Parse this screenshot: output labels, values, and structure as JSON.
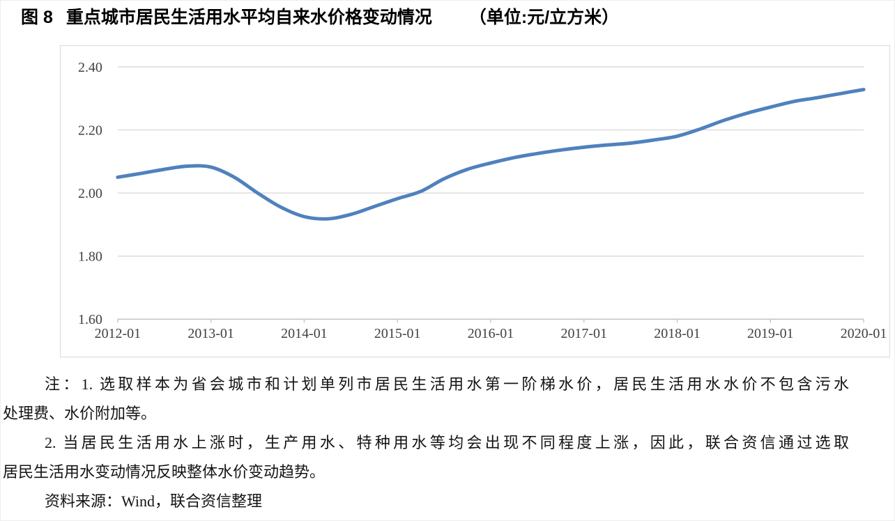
{
  "page": {
    "title": {
      "figure_label": "图 8",
      "main": "重点城市居民生活用水平均自来水价格变动情况",
      "unit": "（单位:元/立方米）"
    },
    "notes": {
      "note1_line1": "注：1. 选取样本为省会城市和计划单列市居民生活用水第一阶梯水价，居民生活用水水价不包含污水",
      "note1_line2": "处理费、水价附加等。",
      "note2_line1": "2. 当居民生活用水上涨时，生产用水、特种用水等均会出现不同程度上涨，因此，联合资信通过选取",
      "note2_line2": "居民生活用水变动情况反映整体水价变动趋势。",
      "source": "资料来源：Wind，联合资信整理"
    }
  },
  "chart_data": {
    "type": "line",
    "title": "图 8 重点城市居民生活用水平均自来水价格变动情况（单位:元/立方米）",
    "xlabel": "",
    "ylabel": "",
    "ylim": [
      1.6,
      2.4
    ],
    "grid": "horizontal",
    "legend_position": "none",
    "x": [
      "2012-01",
      "2012-04",
      "2012-07",
      "2012-10",
      "2013-01",
      "2013-04",
      "2013-07",
      "2013-10",
      "2014-01",
      "2014-04",
      "2014-07",
      "2014-10",
      "2015-01",
      "2015-04",
      "2015-07",
      "2015-10",
      "2016-01",
      "2016-04",
      "2016-07",
      "2016-10",
      "2017-01",
      "2017-04",
      "2017-07",
      "2017-10",
      "2018-01",
      "2018-04",
      "2018-07",
      "2018-10",
      "2019-01",
      "2019-04",
      "2019-07",
      "2019-10",
      "2020-01"
    ],
    "values": [
      2.05,
      2.062,
      2.075,
      2.085,
      2.082,
      2.05,
      2.0,
      1.955,
      1.925,
      1.918,
      1.932,
      1.957,
      1.982,
      2.005,
      2.045,
      2.075,
      2.095,
      2.112,
      2.125,
      2.136,
      2.145,
      2.152,
      2.158,
      2.168,
      2.18,
      2.203,
      2.23,
      2.253,
      2.272,
      2.29,
      2.302,
      2.315,
      2.328
    ],
    "xtick_labels": [
      "2012-01",
      "2013-01",
      "2014-01",
      "2015-01",
      "2016-01",
      "2017-01",
      "2018-01",
      "2019-01",
      "2020-01"
    ],
    "ytick_labels": [
      "2.40",
      "2.20",
      "2.00",
      "1.80",
      "1.60"
    ],
    "line_color": "#4f81bd",
    "grid_color": "#d9d9d9",
    "axis_color": "#c3c3c3",
    "tick_label_color": "#404040",
    "border_color": "#d9d9d9"
  }
}
